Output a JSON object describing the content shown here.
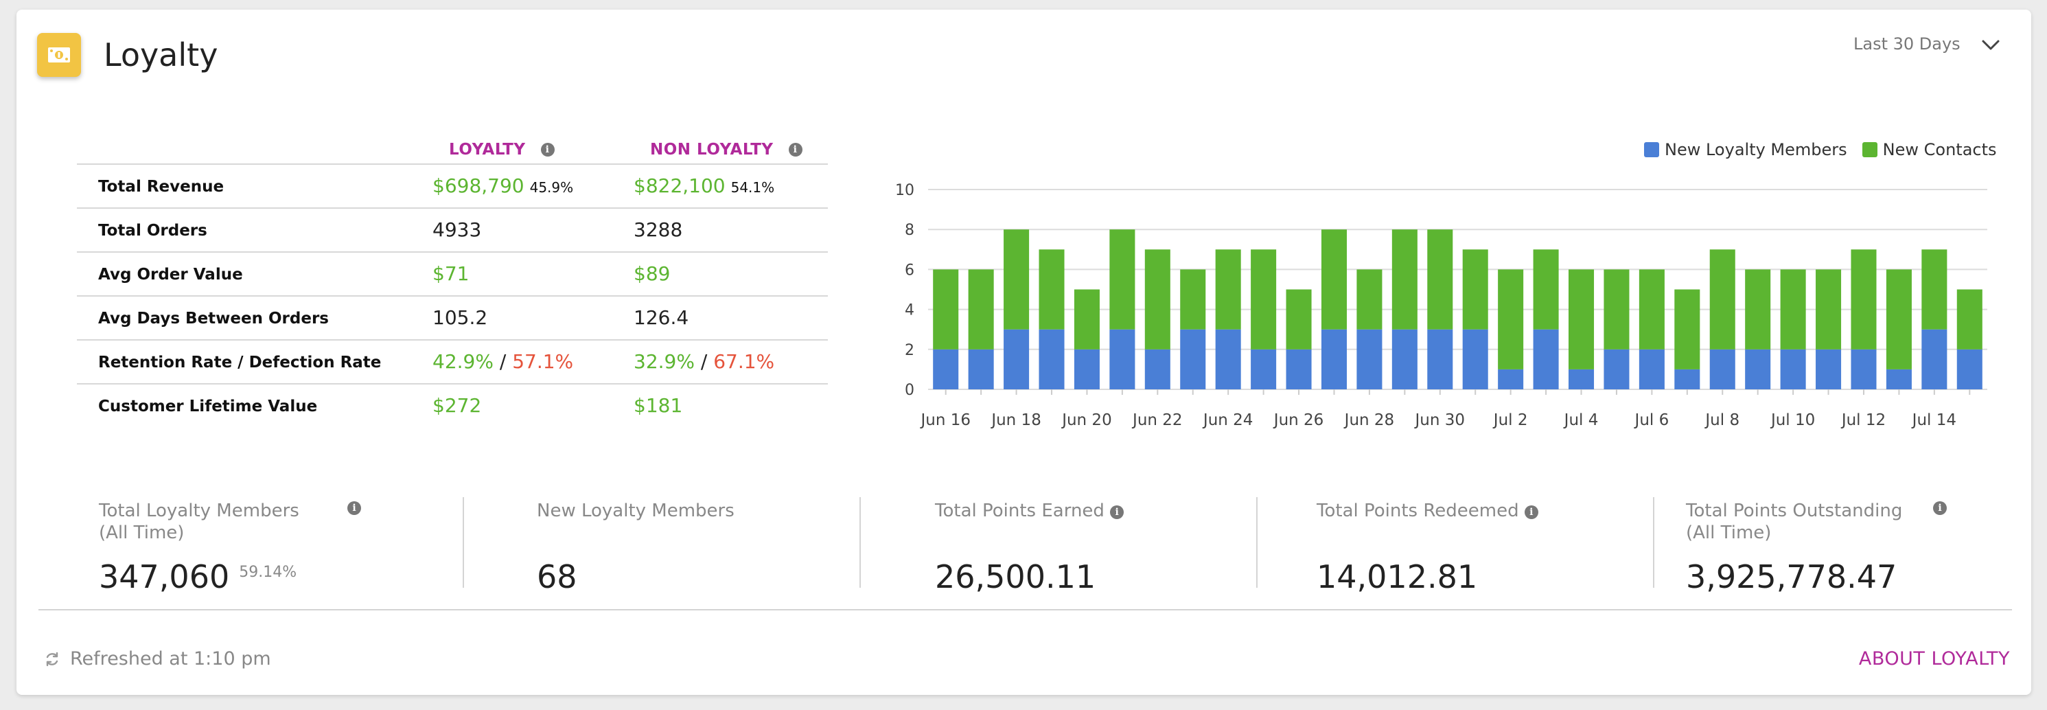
{
  "header": {
    "title": "Loyalty",
    "icon": "money-bill-icon",
    "range_label": "Last 30 Days"
  },
  "table": {
    "col1_title": "LOYALTY",
    "col2_title": "NON LOYALTY",
    "rows": [
      {
        "label": "Total Revenue",
        "loyalty": "$698,790",
        "loyalty_pct": "45.9%",
        "non_loyalty": "$822,100",
        "non_loyalty_pct": "54.1%"
      },
      {
        "label": "Total Orders",
        "loyalty": "4933",
        "non_loyalty": "3288"
      },
      {
        "label": "Avg Order Value",
        "loyalty": "$71",
        "non_loyalty": "$89"
      },
      {
        "label": "Avg Days Between Orders",
        "loyalty": "105.2",
        "non_loyalty": "126.4"
      },
      {
        "label": "Retention Rate / Defection Rate",
        "loyalty_ret": "42.9%",
        "loyalty_def": "57.1%",
        "non_loyalty_ret": "32.9%",
        "non_loyalty_def": "67.1%",
        "sep": "/"
      },
      {
        "label": "Customer Lifetime Value",
        "loyalty": "$272",
        "non_loyalty": "$181"
      }
    ]
  },
  "chart_data": {
    "type": "bar",
    "stacked": true,
    "categories": [
      "Jun 16",
      "Jun 17",
      "Jun 18",
      "Jun 19",
      "Jun 20",
      "Jun 21",
      "Jun 22",
      "Jun 23",
      "Jun 24",
      "Jun 25",
      "Jun 26",
      "Jun 27",
      "Jun 28",
      "Jun 29",
      "Jun 30",
      "Jul 1",
      "Jul 2",
      "Jul 3",
      "Jul 4",
      "Jul 5",
      "Jul 6",
      "Jul 7",
      "Jul 8",
      "Jul 9",
      "Jul 10",
      "Jul 11",
      "Jul 12",
      "Jul 13",
      "Jul 14",
      "Jul 15"
    ],
    "tick_labels": [
      "Jun 16",
      "Jun 18",
      "Jun 20",
      "Jun 22",
      "Jun 24",
      "Jun 26",
      "Jun 28",
      "Jun 30",
      "Jul 2",
      "Jul 4",
      "Jul 6",
      "Jul 8",
      "Jul 10",
      "Jul 12",
      "Jul 14"
    ],
    "series": [
      {
        "name": "New Loyalty Members",
        "color": "#4a7fd6",
        "values": [
          2,
          2,
          3,
          3,
          2,
          3,
          2,
          3,
          3,
          2,
          2,
          3,
          3,
          3,
          3,
          3,
          1,
          3,
          1,
          2,
          2,
          1,
          2,
          2,
          2,
          2,
          2,
          1,
          3,
          2
        ]
      },
      {
        "name": "New Contacts",
        "color": "#5cb531",
        "values": [
          4,
          4,
          5,
          4,
          3,
          5,
          5,
          3,
          4,
          5,
          3,
          5,
          3,
          5,
          5,
          4,
          5,
          4,
          5,
          4,
          4,
          4,
          5,
          4,
          4,
          4,
          5,
          5,
          4,
          3
        ]
      }
    ],
    "ylim": [
      0,
      10
    ],
    "yticks": [
      "0",
      "2",
      "4",
      "6",
      "8",
      "10"
    ],
    "grid": true,
    "legend": "top-right"
  },
  "stats": [
    {
      "label": "Total Loyalty Members (All Time)",
      "value": "347,060",
      "sub": "59.14%"
    },
    {
      "label": "New Loyalty Members",
      "value": "68"
    },
    {
      "label": "Total Points Earned",
      "value": "26,500.11"
    },
    {
      "label": "Total Points Redeemed",
      "value": "14,012.81"
    },
    {
      "label": "Total Points Outstanding (All Time)",
      "value": "3,925,778.47"
    }
  ],
  "footer": {
    "refreshed": "Refreshed at 1:10 pm",
    "about_link": "ABOUT LOYALTY"
  }
}
